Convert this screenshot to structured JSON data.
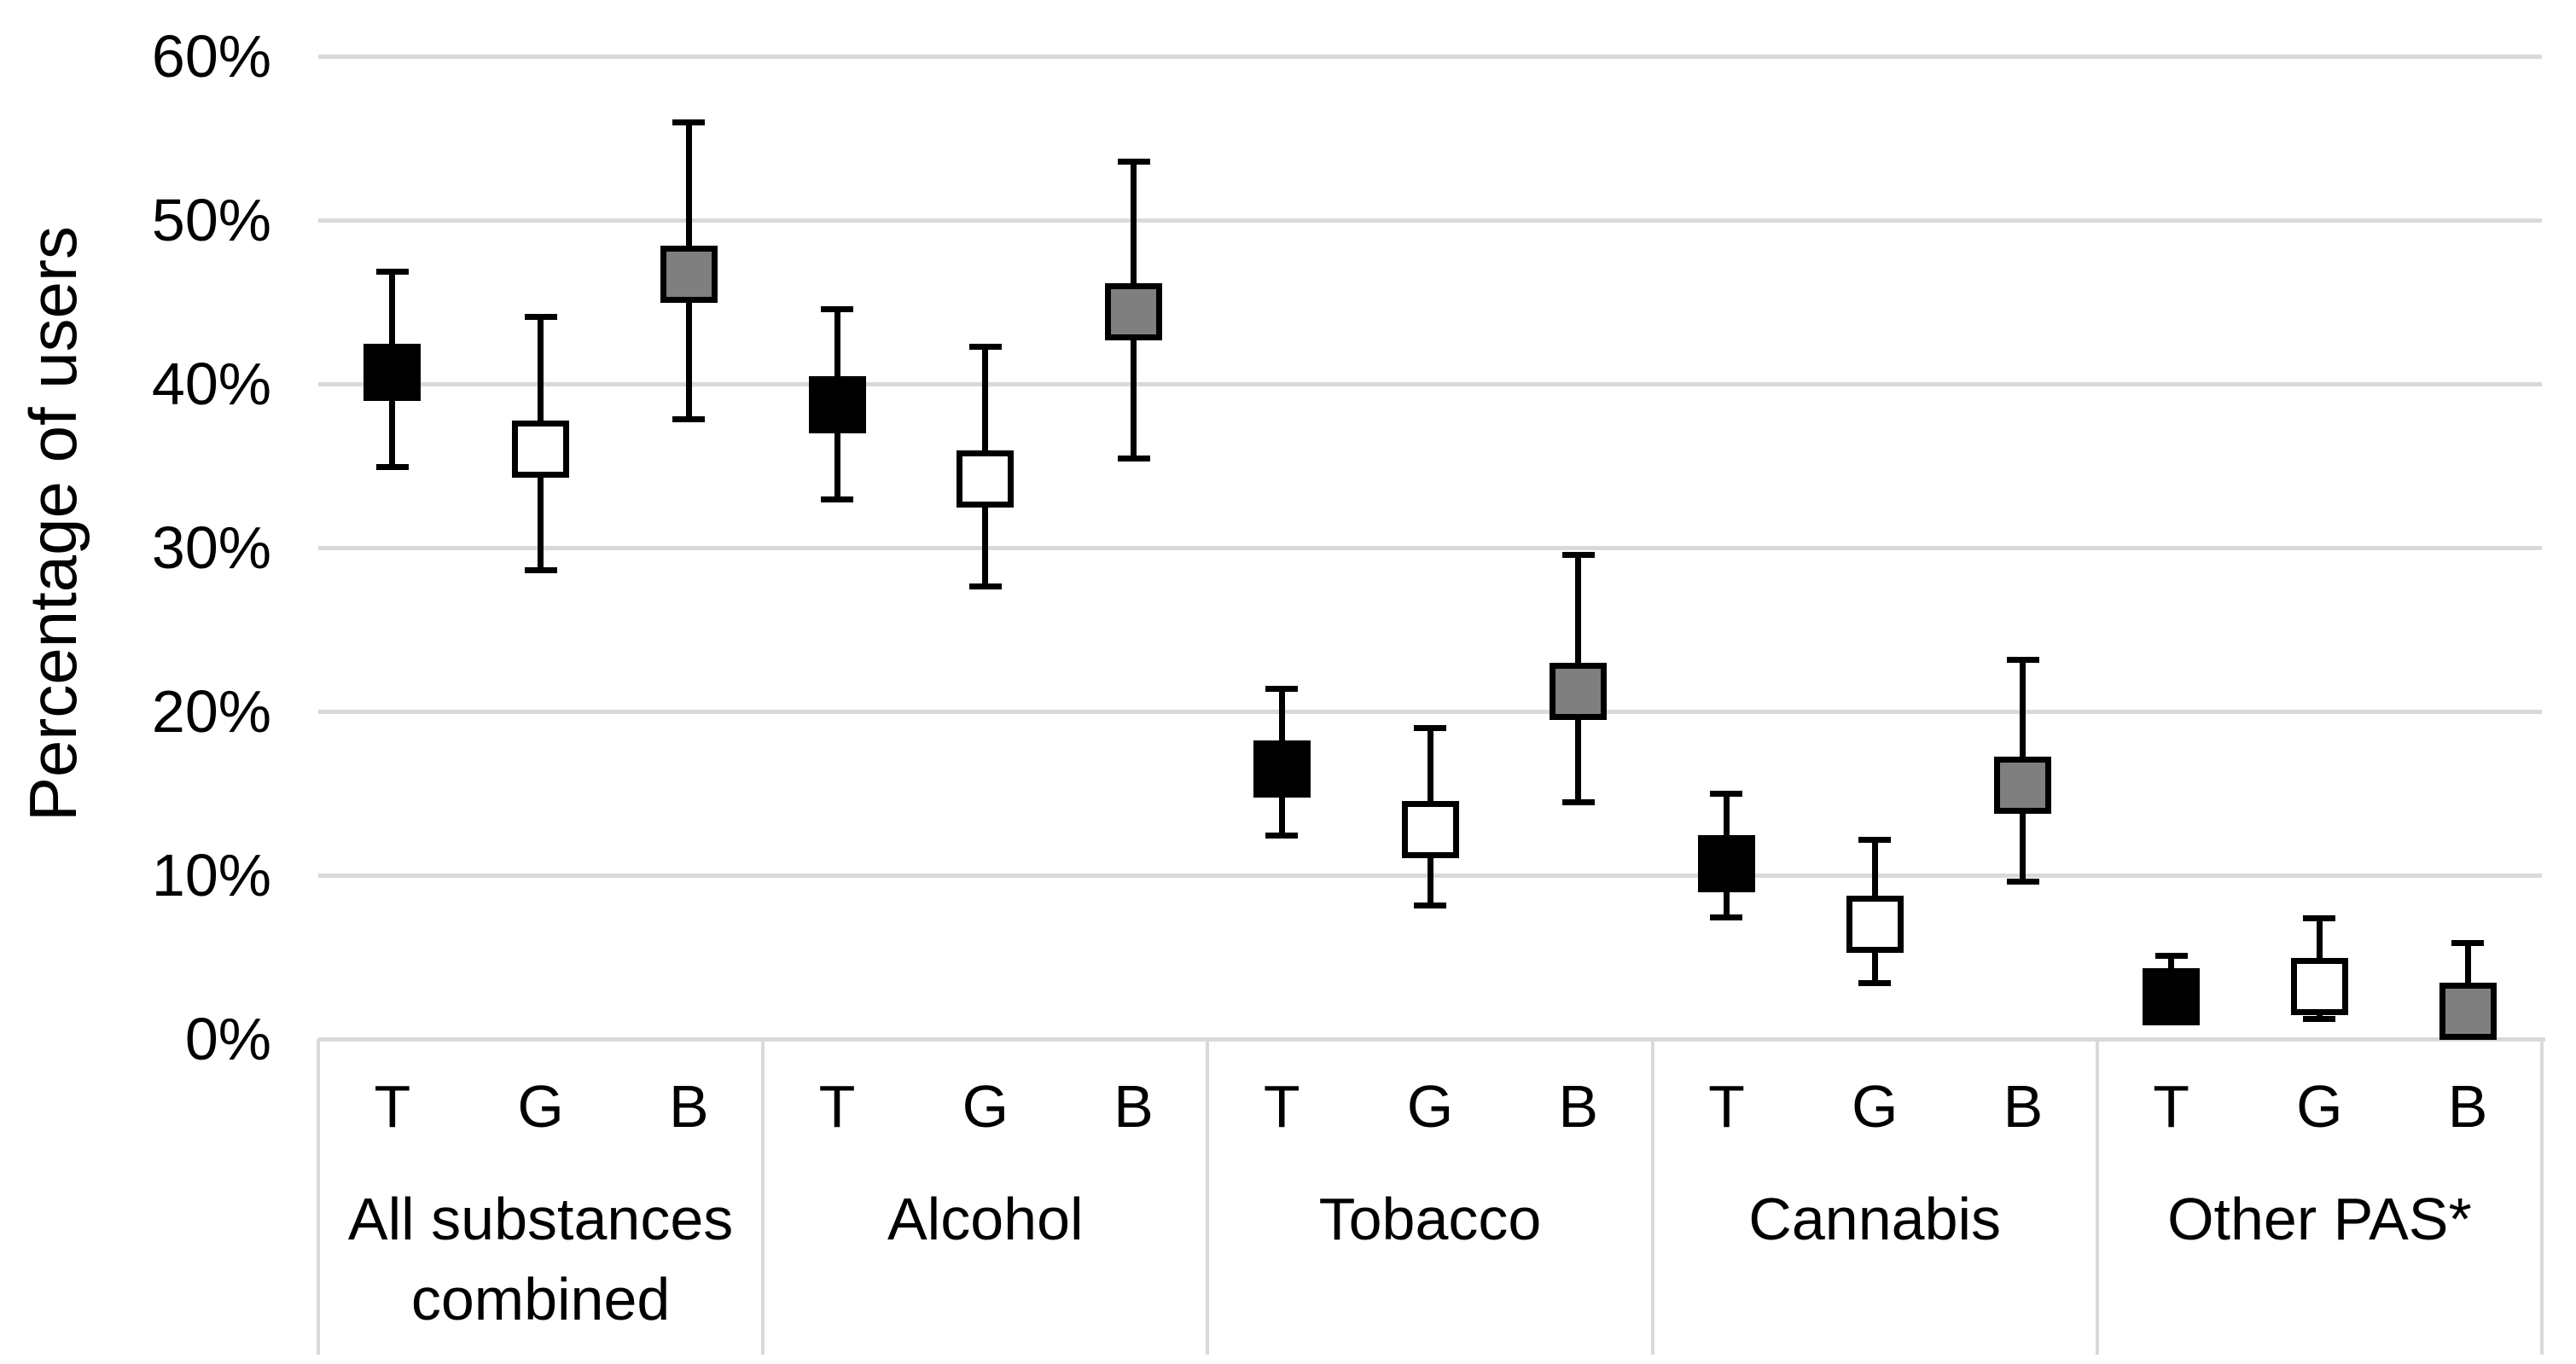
{
  "chart_data": {
    "type": "scatter",
    "title": "",
    "ylabel": "Percentage of users",
    "xlabel": "",
    "y_axis": {
      "min": 0,
      "max": 60,
      "tick_step": 10,
      "tick_values": [
        0,
        10,
        20,
        30,
        40,
        50,
        60
      ],
      "tick_labels": [
        "0%",
        "10%",
        "20%",
        "30%",
        "40%",
        "50%",
        "60%"
      ],
      "grid": true
    },
    "categories": [
      "All substances combined",
      "Alcohol",
      "Tobacco",
      "Cannabis",
      "Other PAS*"
    ],
    "category_label_lines": [
      [
        "All substances",
        "combined"
      ],
      [
        "Alcohol"
      ],
      [
        "Tobacco"
      ],
      [
        "Cannabis"
      ],
      [
        "Other PAS*"
      ]
    ],
    "sub_labels": [
      "T",
      "G",
      "B"
    ],
    "error_bars": true,
    "legend": "none",
    "series": [
      {
        "name": "T",
        "marker": "square",
        "marker_fill": "#000000",
        "marker_stroke": "#000000",
        "values": [
          40.7,
          38.7,
          16.5,
          10.7,
          2.6
        ],
        "ci_low": [
          34.8,
          32.8,
          12.3,
          7.3,
          1.2
        ],
        "ci_high": [
          47.0,
          44.7,
          21.5,
          15.1,
          5.2
        ]
      },
      {
        "name": "G",
        "marker": "square",
        "marker_fill": "#ffffff",
        "marker_stroke": "#000000",
        "values": [
          36.0,
          34.2,
          12.8,
          7.0,
          3.2
        ],
        "ci_low": [
          28.5,
          27.5,
          8.0,
          3.3,
          1.1
        ],
        "ci_high": [
          44.2,
          42.4,
          19.1,
          12.3,
          7.5
        ]
      },
      {
        "name": "B",
        "marker": "square",
        "marker_fill": "#7f7f7f",
        "marker_stroke": "#000000",
        "values": [
          46.7,
          44.4,
          21.2,
          15.5,
          1.7
        ],
        "ci_low": [
          37.7,
          35.3,
          14.3,
          9.5,
          0.5
        ],
        "ci_high": [
          56.1,
          53.7,
          29.7,
          23.3,
          6.0
        ]
      }
    ],
    "colors": {
      "background": "#ffffff",
      "gridline": "#d9d9d9",
      "axis_band_border": "#d9d9d9",
      "text": "#000000"
    }
  }
}
